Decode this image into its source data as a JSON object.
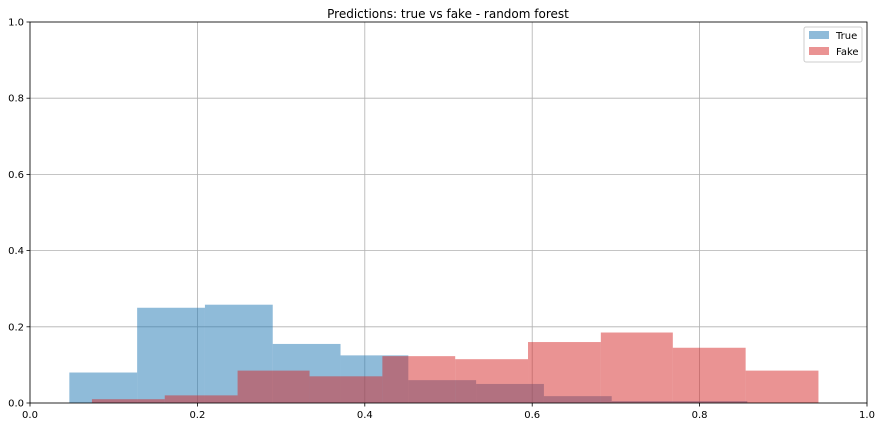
{
  "chart_data": {
    "type": "bar",
    "title": "Predictions: true vs fake - random forest",
    "xlabel": "",
    "ylabel": "",
    "xlim": [
      0,
      1
    ],
    "ylim": [
      0,
      1
    ],
    "xticks": [
      "0.0",
      "0.2",
      "0.4",
      "0.6",
      "0.8",
      "1.0"
    ],
    "yticks": [
      "0.0",
      "0.2",
      "0.4",
      "0.6",
      "0.8",
      "1.0"
    ],
    "grid": true,
    "legend_position": "top-right",
    "series": [
      {
        "name": "True",
        "color": "#1f77b4",
        "opacity": 0.5,
        "bins": [
          {
            "x0": 0.047,
            "x1": 0.128,
            "value": 0.08
          },
          {
            "x0": 0.128,
            "x1": 0.209,
            "value": 0.25
          },
          {
            "x0": 0.209,
            "x1": 0.29,
            "value": 0.258
          },
          {
            "x0": 0.29,
            "x1": 0.371,
            "value": 0.155
          },
          {
            "x0": 0.371,
            "x1": 0.452,
            "value": 0.125
          },
          {
            "x0": 0.452,
            "x1": 0.533,
            "value": 0.06
          },
          {
            "x0": 0.533,
            "x1": 0.614,
            "value": 0.05
          },
          {
            "x0": 0.614,
            "x1": 0.695,
            "value": 0.018
          },
          {
            "x0": 0.695,
            "x1": 0.776,
            "value": 0.005
          },
          {
            "x0": 0.776,
            "x1": 0.857,
            "value": 0.005
          }
        ]
      },
      {
        "name": "Fake",
        "color": "#d62728",
        "opacity": 0.5,
        "bins": [
          {
            "x0": 0.074,
            "x1": 0.161,
            "value": 0.01
          },
          {
            "x0": 0.161,
            "x1": 0.248,
            "value": 0.02
          },
          {
            "x0": 0.248,
            "x1": 0.334,
            "value": 0.085
          },
          {
            "x0": 0.334,
            "x1": 0.421,
            "value": 0.07
          },
          {
            "x0": 0.421,
            "x1": 0.508,
            "value": 0.123
          },
          {
            "x0": 0.508,
            "x1": 0.595,
            "value": 0.115
          },
          {
            "x0": 0.595,
            "x1": 0.682,
            "value": 0.16
          },
          {
            "x0": 0.682,
            "x1": 0.768,
            "value": 0.185
          },
          {
            "x0": 0.768,
            "x1": 0.855,
            "value": 0.145
          },
          {
            "x0": 0.855,
            "x1": 0.942,
            "value": 0.085
          }
        ]
      }
    ]
  }
}
